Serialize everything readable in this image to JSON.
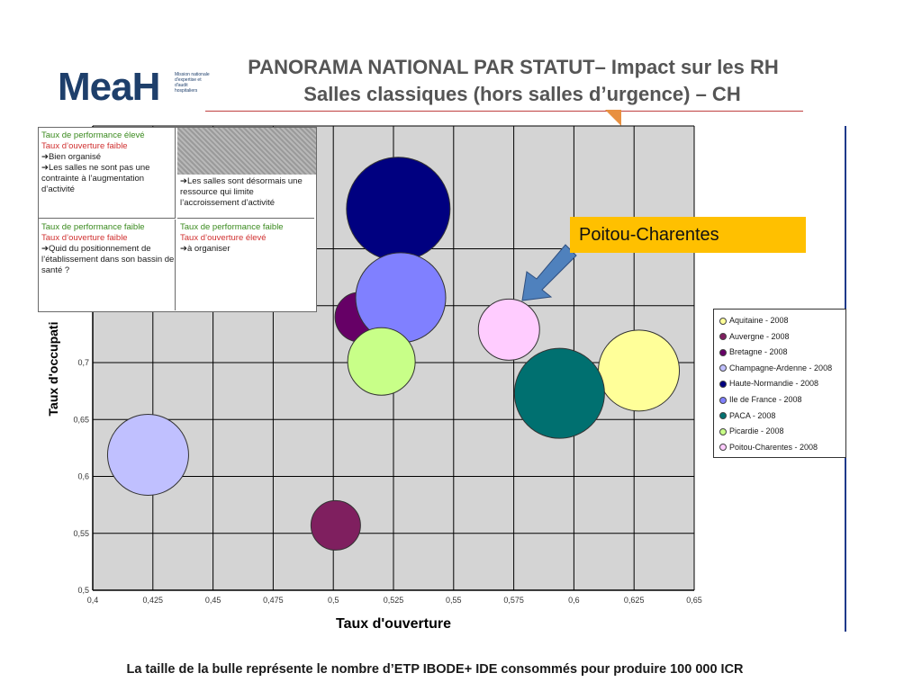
{
  "logo": {
    "text": "MeaH",
    "tagline": "Mission nationale d'expertise et d'audit hospitaliers"
  },
  "title_line1": "PANORAMA NATIONAL PAR STATUT– Impact sur les RH",
  "title_line2": "Salles classiques (hors salles d’urgence) – CH",
  "callout": "Poitou-Charentes",
  "info_box": {
    "top_left": {
      "perf": "Taux de performance élevé",
      "ouv": "Taux d’ouverture faible",
      "text": "➔Bien organisé\n➔Les salles ne sont pas une contrainte à l’augmentation d’activité"
    },
    "top_right": {
      "text": "➔Les salles sont désormais une ressource qui limite l’accroissement d’activité"
    },
    "bottom_left": {
      "perf": "Taux de performance faible",
      "ouv": "Taux d’ouverture faible",
      "text": "➔Quid du positionnement de l’établissement dans son bassin de santé ?"
    },
    "bottom_right": {
      "perf": "Taux de performance faible",
      "ouv": "Taux d’ouverture élevé",
      "text": "➔à organiser"
    }
  },
  "footnote": "La taille de la bulle représente le nombre d’ETP IBODE+ IDE consommés pour produire 100 000 ICR",
  "chart_data": {
    "type": "scatter",
    "xlabel": "Taux d'ouverture",
    "ylabel": "Taux d'occupati",
    "xlim": [
      0.4,
      0.65
    ],
    "ylim": [
      0.5,
      0.8
    ],
    "x_ticks": [
      "0,4",
      "0,425",
      "0,45",
      "0,475",
      "0,5",
      "0,525",
      "0,55",
      "0,575",
      "0,6",
      "0,625",
      "0,65"
    ],
    "y_ticks": [
      "0,5",
      "0,55",
      "0,6",
      "0,65",
      "0,7"
    ],
    "grid": true,
    "legend_position": "right",
    "series": [
      {
        "name": "Aquitaine - 2008",
        "x": 0.627,
        "y": 0.693,
        "size": 0.9,
        "color": "#ffff99"
      },
      {
        "name": "Auvergne - 2008",
        "x": 0.501,
        "y": 0.557,
        "size": 0.55,
        "color": "#7f1f5f"
      },
      {
        "name": "Bretagne - 2008",
        "x": 0.511,
        "y": 0.74,
        "size": 0.55,
        "color": "#660066"
      },
      {
        "name": "Champagne-Ardenne - 2008",
        "x": 0.423,
        "y": 0.619,
        "size": 0.9,
        "color": "#c0c0ff"
      },
      {
        "name": "Haute-Normandie - 2008",
        "x": 0.527,
        "y": 0.835,
        "size": 1.15,
        "color": "#000080"
      },
      {
        "name": "Ile de France - 2008",
        "x": 0.528,
        "y": 0.757,
        "size": 1.0,
        "color": "#8080ff"
      },
      {
        "name": "PACA - 2008",
        "x": 0.594,
        "y": 0.673,
        "size": 1.0,
        "color": "#007070"
      },
      {
        "name": "Picardie - 2008",
        "x": 0.52,
        "y": 0.701,
        "size": 0.75,
        "color": "#c8ff88"
      },
      {
        "name": "Poitou-Charentes - 2008",
        "x": 0.573,
        "y": 0.729,
        "size": 0.68,
        "color": "#ffccff"
      }
    ]
  }
}
